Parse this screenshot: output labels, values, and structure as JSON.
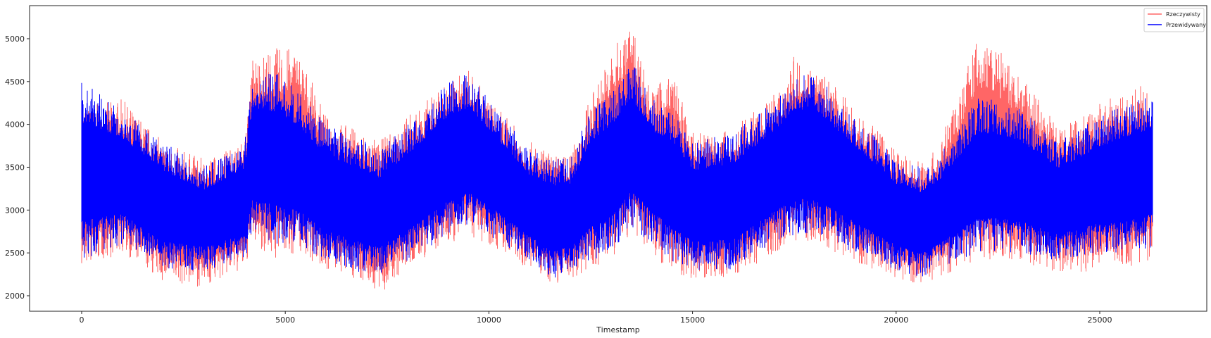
{
  "chart_data": {
    "type": "line",
    "title": "",
    "xlabel": "Timestamp",
    "ylabel": "",
    "xlim": [
      -1279,
      27628
    ],
    "ylim": [
      1819,
      5386
    ],
    "xticks": [
      "0",
      "5000",
      "10000",
      "15000",
      "20000",
      "25000"
    ],
    "yticks": [
      "2000",
      "2500",
      "3000",
      "3500",
      "4000",
      "4500",
      "5000"
    ],
    "grid": false,
    "legend": "top-right",
    "x": [
      0,
      1000,
      2000,
      3000,
      4000,
      4200,
      4800,
      5300,
      6000,
      7000,
      7300,
      8000,
      9000,
      9500,
      10000,
      11000,
      11600,
      12000,
      12500,
      13000,
      13500,
      14000,
      14500,
      15000,
      16000,
      17000,
      17500,
      18000,
      19000,
      20000,
      20600,
      21000,
      22000,
      22400,
      23000,
      24000,
      25000,
      26000,
      26300
    ],
    "series": [
      {
        "name": "Rzeczywisty",
        "color": "#ff6666",
        "upper": [
          4200,
          4300,
          3800,
          3600,
          3800,
          4800,
          4900,
          4900,
          4100,
          3900,
          3800,
          4100,
          4500,
          4650,
          4300,
          3800,
          3650,
          3650,
          4350,
          4850,
          5200,
          4400,
          4650,
          3900,
          3950,
          4350,
          4800,
          4700,
          4200,
          3700,
          3600,
          3700,
          5000,
          4950,
          4600,
          4000,
          4250,
          4450,
          4300
        ],
        "lower": [
          2300,
          2500,
          2150,
          2100,
          2300,
          2600,
          2400,
          2500,
          2300,
          2150,
          1990,
          2300,
          2600,
          2700,
          2600,
          2300,
          2120,
          2200,
          2300,
          2400,
          2700,
          2500,
          2250,
          2200,
          2200,
          2500,
          2650,
          2600,
          2400,
          2200,
          2100,
          2200,
          2400,
          2400,
          2400,
          2250,
          2300,
          2350,
          2400
        ]
      },
      {
        "name": "Przewidywany",
        "color": "#0000ff",
        "upper": [
          4500,
          4200,
          3800,
          3500,
          3800,
          4600,
          4600,
          4400,
          4000,
          3800,
          3700,
          4000,
          4500,
          4600,
          4300,
          3700,
          3600,
          3600,
          4200,
          4400,
          4750,
          4300,
          4200,
          3800,
          3900,
          4300,
          4600,
          4600,
          4100,
          3600,
          3500,
          3600,
          4300,
          4300,
          4200,
          3800,
          4100,
          4300,
          4400
        ],
        "lower": [
          2400,
          2600,
          2300,
          2300,
          2400,
          2700,
          2600,
          2600,
          2400,
          2250,
          2250,
          2400,
          2700,
          2800,
          2700,
          2400,
          2200,
          2300,
          2400,
          2500,
          2800,
          2600,
          2400,
          2300,
          2300,
          2600,
          2700,
          2700,
          2500,
          2300,
          2200,
          2300,
          2500,
          2500,
          2500,
          2400,
          2500,
          2500,
          2550
        ]
      }
    ]
  }
}
